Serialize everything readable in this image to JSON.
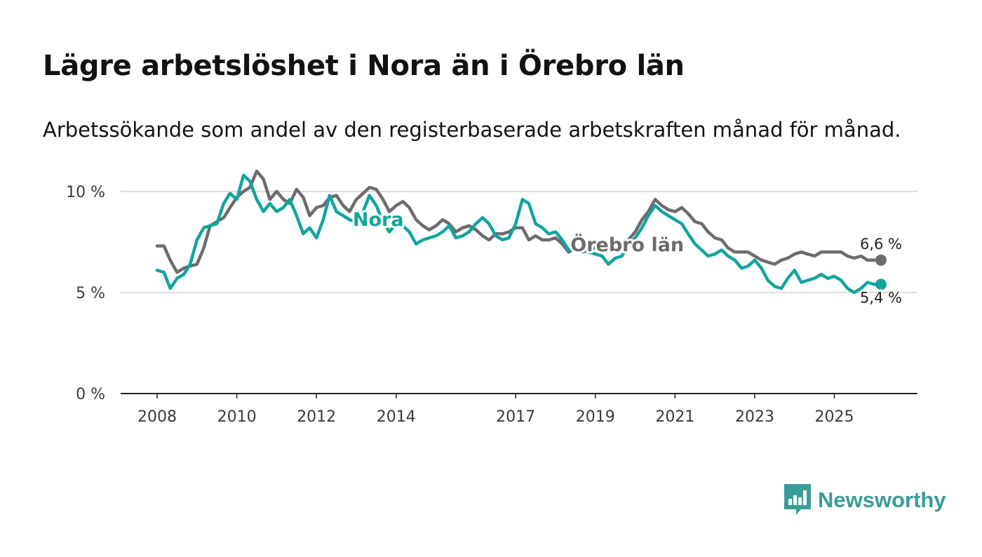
{
  "title": "Lägre arbetslöshet i Nora än i Örebro län",
  "subtitle": "Arbetssökande som andel av den registerbaserade arbetskraften månad för månad.",
  "brand": {
    "name": "Newsworthy",
    "color": "#3a9c98"
  },
  "chart_data": {
    "type": "line",
    "title": "Lägre arbetslöshet i Nora än i Örebro län",
    "xlabel": "",
    "ylabel": "",
    "xlim": [
      2008.0,
      2026.17
    ],
    "ylim": [
      0,
      11
    ],
    "x_ticks": [
      {
        "value": 2008,
        "label": "2008"
      },
      {
        "value": 2010,
        "label": "2010"
      },
      {
        "value": 2012,
        "label": "2012"
      },
      {
        "value": 2014,
        "label": "2014"
      },
      {
        "value": 2017,
        "label": "2017"
      },
      {
        "value": 2019,
        "label": "2019"
      },
      {
        "value": 2021,
        "label": "2021"
      },
      {
        "value": 2023,
        "label": "2023"
      },
      {
        "value": 2025,
        "label": "2025"
      }
    ],
    "y_ticks": [
      {
        "value": 0,
        "label": "0 %"
      },
      {
        "value": 5,
        "label": "5 %"
      },
      {
        "value": 10,
        "label": "10 %"
      }
    ],
    "series": [
      {
        "name": "Örebro län",
        "color": "#6e6a70",
        "label_at": [
          2013.7,
          8.9
        ],
        "end_label": "6,6 %",
        "points": [
          [
            2008.0,
            7.3
          ],
          [
            2008.17,
            7.3
          ],
          [
            2008.33,
            6.6
          ],
          [
            2008.5,
            6.0
          ],
          [
            2008.67,
            6.2
          ],
          [
            2008.83,
            6.3
          ],
          [
            2009.0,
            6.4
          ],
          [
            2009.17,
            7.2
          ],
          [
            2009.33,
            8.3
          ],
          [
            2009.5,
            8.5
          ],
          [
            2009.67,
            8.7
          ],
          [
            2009.83,
            9.2
          ],
          [
            2010.0,
            9.7
          ],
          [
            2010.17,
            10.0
          ],
          [
            2010.33,
            10.2
          ],
          [
            2010.5,
            11.0
          ],
          [
            2010.67,
            10.6
          ],
          [
            2010.83,
            9.6
          ],
          [
            2011.0,
            10.0
          ],
          [
            2011.17,
            9.6
          ],
          [
            2011.33,
            9.4
          ],
          [
            2011.5,
            10.1
          ],
          [
            2011.67,
            9.7
          ],
          [
            2011.83,
            8.8
          ],
          [
            2012.0,
            9.2
          ],
          [
            2012.17,
            9.3
          ],
          [
            2012.33,
            9.7
          ],
          [
            2012.5,
            9.8
          ],
          [
            2012.67,
            9.3
          ],
          [
            2012.83,
            9.0
          ],
          [
            2013.0,
            9.6
          ],
          [
            2013.17,
            9.9
          ],
          [
            2013.33,
            10.2
          ],
          [
            2013.5,
            10.1
          ],
          [
            2013.67,
            9.6
          ],
          [
            2013.83,
            9.0
          ],
          [
            2014.0,
            9.3
          ],
          [
            2014.17,
            9.5
          ],
          [
            2014.33,
            9.2
          ],
          [
            2014.5,
            8.6
          ],
          [
            2014.67,
            8.3
          ],
          [
            2014.83,
            8.1
          ],
          [
            2015.0,
            8.3
          ],
          [
            2015.17,
            8.6
          ],
          [
            2015.33,
            8.4
          ],
          [
            2015.5,
            8.0
          ],
          [
            2015.67,
            8.2
          ],
          [
            2015.83,
            8.3
          ],
          [
            2016.0,
            8.1
          ],
          [
            2016.17,
            7.8
          ],
          [
            2016.33,
            7.6
          ],
          [
            2016.5,
            7.9
          ],
          [
            2016.67,
            7.9
          ],
          [
            2016.83,
            8.0
          ],
          [
            2017.0,
            8.2
          ],
          [
            2017.17,
            8.2
          ],
          [
            2017.33,
            7.6
          ],
          [
            2017.5,
            7.8
          ],
          [
            2017.67,
            7.6
          ],
          [
            2017.83,
            7.6
          ],
          [
            2018.0,
            7.7
          ],
          [
            2018.17,
            7.4
          ],
          [
            2018.33,
            7.0
          ],
          [
            2018.5,
            7.2
          ],
          [
            2018.67,
            7.0
          ],
          [
            2018.83,
            7.1
          ],
          [
            2019.0,
            7.2
          ],
          [
            2019.17,
            7.0
          ],
          [
            2019.33,
            7.2
          ],
          [
            2019.5,
            7.4
          ],
          [
            2019.67,
            7.3
          ],
          [
            2019.83,
            7.6
          ],
          [
            2020.0,
            8.0
          ],
          [
            2020.17,
            8.6
          ],
          [
            2020.33,
            9.0
          ],
          [
            2020.5,
            9.6
          ],
          [
            2020.67,
            9.3
          ],
          [
            2020.83,
            9.1
          ],
          [
            2021.0,
            9.0
          ],
          [
            2021.17,
            9.2
          ],
          [
            2021.33,
            8.9
          ],
          [
            2021.5,
            8.5
          ],
          [
            2021.67,
            8.4
          ],
          [
            2021.83,
            8.0
          ],
          [
            2022.0,
            7.7
          ],
          [
            2022.17,
            7.6
          ],
          [
            2022.33,
            7.2
          ],
          [
            2022.5,
            7.0
          ],
          [
            2022.67,
            7.0
          ],
          [
            2022.83,
            7.0
          ],
          [
            2023.0,
            6.8
          ],
          [
            2023.17,
            6.6
          ],
          [
            2023.33,
            6.5
          ],
          [
            2023.5,
            6.4
          ],
          [
            2023.67,
            6.6
          ],
          [
            2023.83,
            6.7
          ],
          [
            2024.0,
            6.9
          ],
          [
            2024.17,
            7.0
          ],
          [
            2024.33,
            6.9
          ],
          [
            2024.5,
            6.8
          ],
          [
            2024.67,
            7.0
          ],
          [
            2024.83,
            7.0
          ],
          [
            2025.0,
            7.0
          ],
          [
            2025.17,
            7.0
          ],
          [
            2025.33,
            6.8
          ],
          [
            2025.5,
            6.7
          ],
          [
            2025.67,
            6.8
          ],
          [
            2025.83,
            6.6
          ],
          [
            2026.0,
            6.6
          ],
          [
            2026.17,
            6.6
          ]
        ]
      },
      {
        "name": "Nora",
        "color": "#11a59c",
        "label_at": [
          2008.6,
          6.6
        ],
        "end_label": "5,4 %",
        "points": [
          [
            2008.0,
            6.1
          ],
          [
            2008.17,
            6.0
          ],
          [
            2008.33,
            5.2
          ],
          [
            2008.5,
            5.7
          ],
          [
            2008.67,
            5.9
          ],
          [
            2008.83,
            6.4
          ],
          [
            2009.0,
            7.6
          ],
          [
            2009.17,
            8.2
          ],
          [
            2009.33,
            8.3
          ],
          [
            2009.5,
            8.4
          ],
          [
            2009.67,
            9.4
          ],
          [
            2009.83,
            9.9
          ],
          [
            2010.0,
            9.6
          ],
          [
            2010.17,
            10.8
          ],
          [
            2010.33,
            10.5
          ],
          [
            2010.5,
            9.6
          ],
          [
            2010.67,
            9.0
          ],
          [
            2010.83,
            9.4
          ],
          [
            2011.0,
            9.0
          ],
          [
            2011.17,
            9.2
          ],
          [
            2011.33,
            9.6
          ],
          [
            2011.5,
            8.8
          ],
          [
            2011.67,
            7.9
          ],
          [
            2011.83,
            8.2
          ],
          [
            2012.0,
            7.7
          ],
          [
            2012.17,
            8.6
          ],
          [
            2012.33,
            9.8
          ],
          [
            2012.5,
            9.0
          ],
          [
            2012.67,
            8.8
          ],
          [
            2012.83,
            8.6
          ],
          [
            2013.0,
            8.5
          ],
          [
            2013.17,
            9.0
          ],
          [
            2013.33,
            9.8
          ],
          [
            2013.5,
            9.3
          ],
          [
            2013.67,
            8.5
          ],
          [
            2013.83,
            8.0
          ],
          [
            2014.0,
            8.4
          ],
          [
            2014.17,
            8.3
          ],
          [
            2014.33,
            8.0
          ],
          [
            2014.5,
            7.4
          ],
          [
            2014.67,
            7.6
          ],
          [
            2014.83,
            7.7
          ],
          [
            2015.0,
            7.8
          ],
          [
            2015.17,
            8.0
          ],
          [
            2015.33,
            8.3
          ],
          [
            2015.5,
            7.7
          ],
          [
            2015.67,
            7.8
          ],
          [
            2015.83,
            8.0
          ],
          [
            2016.0,
            8.4
          ],
          [
            2016.17,
            8.7
          ],
          [
            2016.33,
            8.4
          ],
          [
            2016.5,
            7.8
          ],
          [
            2016.67,
            7.6
          ],
          [
            2016.83,
            7.7
          ],
          [
            2017.0,
            8.4
          ],
          [
            2017.17,
            9.6
          ],
          [
            2017.33,
            9.4
          ],
          [
            2017.5,
            8.4
          ],
          [
            2017.67,
            8.2
          ],
          [
            2017.83,
            7.9
          ],
          [
            2018.0,
            8.0
          ],
          [
            2018.17,
            7.6
          ],
          [
            2018.33,
            7.1
          ],
          [
            2018.5,
            7.2
          ],
          [
            2018.67,
            7.1
          ],
          [
            2018.83,
            7.0
          ],
          [
            2019.0,
            6.9
          ],
          [
            2019.17,
            6.8
          ],
          [
            2019.33,
            6.4
          ],
          [
            2019.5,
            6.7
          ],
          [
            2019.67,
            6.8
          ],
          [
            2019.83,
            7.4
          ],
          [
            2020.0,
            7.7
          ],
          [
            2020.17,
            8.2
          ],
          [
            2020.33,
            8.8
          ],
          [
            2020.5,
            9.3
          ],
          [
            2020.67,
            9.0
          ],
          [
            2020.83,
            8.8
          ],
          [
            2021.0,
            8.6
          ],
          [
            2021.17,
            8.4
          ],
          [
            2021.33,
            7.9
          ],
          [
            2021.5,
            7.4
          ],
          [
            2021.67,
            7.1
          ],
          [
            2021.83,
            6.8
          ],
          [
            2022.0,
            6.9
          ],
          [
            2022.17,
            7.1
          ],
          [
            2022.33,
            6.8
          ],
          [
            2022.5,
            6.6
          ],
          [
            2022.67,
            6.2
          ],
          [
            2022.83,
            6.3
          ],
          [
            2023.0,
            6.6
          ],
          [
            2023.17,
            6.2
          ],
          [
            2023.33,
            5.6
          ],
          [
            2023.5,
            5.3
          ],
          [
            2023.67,
            5.2
          ],
          [
            2023.83,
            5.7
          ],
          [
            2024.0,
            6.1
          ],
          [
            2024.17,
            5.5
          ],
          [
            2024.33,
            5.6
          ],
          [
            2024.5,
            5.7
          ],
          [
            2024.67,
            5.9
          ],
          [
            2024.83,
            5.7
          ],
          [
            2025.0,
            5.8
          ],
          [
            2025.17,
            5.6
          ],
          [
            2025.33,
            5.2
          ],
          [
            2025.5,
            5.0
          ],
          [
            2025.67,
            5.2
          ],
          [
            2025.83,
            5.5
          ],
          [
            2026.0,
            5.4
          ],
          [
            2026.17,
            5.4
          ]
        ]
      }
    ]
  }
}
